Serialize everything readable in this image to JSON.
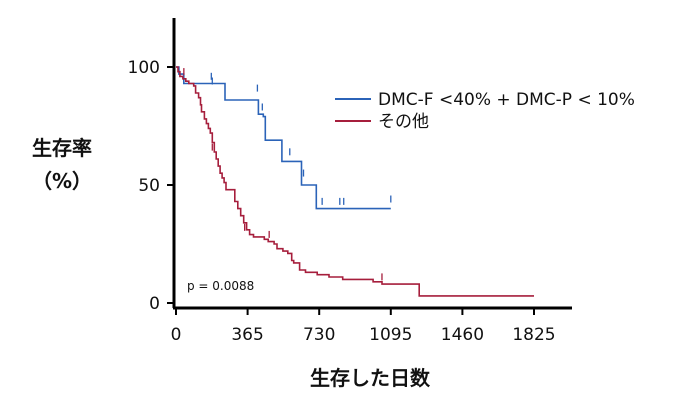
{
  "chart_data": {
    "type": "line",
    "title": "",
    "xlabel": "生存した日数",
    "ylabel_line1": "生存率",
    "ylabel_line2": "（%）",
    "xlim": [
      0,
      2000
    ],
    "ylim": [
      0,
      110
    ],
    "x_ticks": [
      0,
      365,
      730,
      1095,
      1460,
      1825
    ],
    "y_ticks": [
      0,
      50,
      100
    ],
    "legend_position": "top-right",
    "annotation": "p = 0.0088",
    "series": [
      {
        "name": "DMC-F <40% + DMC-P < 10%",
        "color": "#2b63b8",
        "steps": [
          [
            0,
            100
          ],
          [
            15,
            97
          ],
          [
            40,
            93
          ],
          [
            160,
            93
          ],
          [
            250,
            86
          ],
          [
            410,
            86
          ],
          [
            420,
            80
          ],
          [
            445,
            79
          ],
          [
            455,
            69
          ],
          [
            530,
            69
          ],
          [
            540,
            60
          ],
          [
            630,
            60
          ],
          [
            640,
            50
          ],
          [
            705,
            50
          ],
          [
            715,
            40
          ],
          [
            1095,
            40
          ]
        ],
        "censor": [
          [
            180,
            95
          ],
          [
            185,
            93
          ],
          [
            415,
            90
          ],
          [
            440,
            82
          ],
          [
            580,
            63
          ],
          [
            650,
            54
          ],
          [
            745,
            42
          ],
          [
            835,
            42
          ],
          [
            855,
            42
          ],
          [
            1095,
            43
          ]
        ]
      },
      {
        "name": "その他",
        "color": "#a61e3c",
        "steps": [
          [
            0,
            100
          ],
          [
            10,
            98
          ],
          [
            20,
            96
          ],
          [
            35,
            95
          ],
          [
            50,
            94
          ],
          [
            65,
            93
          ],
          [
            90,
            92
          ],
          [
            100,
            89
          ],
          [
            115,
            87
          ],
          [
            125,
            84
          ],
          [
            130,
            81
          ],
          [
            145,
            78
          ],
          [
            155,
            76
          ],
          [
            165,
            74
          ],
          [
            175,
            72
          ],
          [
            185,
            68
          ],
          [
            195,
            64
          ],
          [
            205,
            61
          ],
          [
            215,
            58
          ],
          [
            225,
            55
          ],
          [
            235,
            53
          ],
          [
            245,
            51
          ],
          [
            255,
            48
          ],
          [
            290,
            48
          ],
          [
            300,
            43
          ],
          [
            315,
            40
          ],
          [
            330,
            37
          ],
          [
            345,
            34
          ],
          [
            360,
            31
          ],
          [
            375,
            29
          ],
          [
            395,
            28
          ],
          [
            450,
            27
          ],
          [
            470,
            26
          ],
          [
            500,
            25
          ],
          [
            515,
            23
          ],
          [
            545,
            22
          ],
          [
            570,
            21
          ],
          [
            590,
            18
          ],
          [
            600,
            17
          ],
          [
            630,
            14
          ],
          [
            660,
            13
          ],
          [
            720,
            12
          ],
          [
            780,
            11
          ],
          [
            850,
            10
          ],
          [
            1005,
            9
          ],
          [
            1050,
            8
          ],
          [
            1240,
            3
          ],
          [
            1825,
            3
          ]
        ],
        "censor": [
          [
            40,
            97
          ],
          [
            185,
            65
          ],
          [
            350,
            31
          ],
          [
            475,
            28
          ],
          [
            1050,
            10
          ]
        ]
      }
    ]
  }
}
